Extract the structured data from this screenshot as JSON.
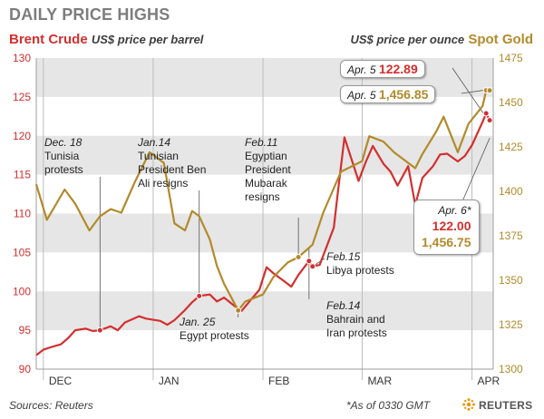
{
  "header": {
    "title": "DAILY PRICE HIGHS",
    "brent_label": "Brent Crude",
    "brent_unit": "US$ price per barrel",
    "gold_unit": "US$ price per ounce",
    "gold_label": "Spot Gold"
  },
  "footer": {
    "source": "Sources: Reuters",
    "asof": "*As of 0330 GMT",
    "brand": "REUTERS"
  },
  "colors": {
    "brent": "#d32f2f",
    "gold": "#b28a2a",
    "band": "#e6e6e6"
  },
  "annotations": {
    "dec18_date": "Dec. 18",
    "dec18_text": "Tunisia\nprotests",
    "jan14_date": "Jan.14",
    "jan14_text": "Tunisian\nPresident Ben\nAli resigns",
    "jan25_date": "Jan. 25",
    "jan25_text": "Egypt protests",
    "feb11_date": "Feb.11",
    "feb11_text": "Egyptian\nPresident\nMubarak\nresigns",
    "feb15_date": "Feb.15",
    "feb15_text": "Libya protests",
    "feb14_date": "Feb.14",
    "feb14_text": "Bahrain and\nIran protests",
    "apr5_brent_date": "Apr. 5",
    "apr5_brent_value": "122.89",
    "apr5_gold_date": "Apr. 5",
    "apr5_gold_value": "1,456.85",
    "apr6_date": "Apr. 6*",
    "apr6_brent": "122.00",
    "apr6_gold": "1,456.75"
  },
  "chart_data": {
    "type": "line",
    "title": "DAILY PRICE HIGHS",
    "x_months": [
      "DEC",
      "JAN",
      "FEB",
      "MAR",
      "APR"
    ],
    "left_axis": {
      "label": "US$ price per barrel",
      "ylim": [
        90,
        130
      ],
      "ticks": [
        90,
        95,
        100,
        105,
        110,
        115,
        120,
        125,
        130
      ]
    },
    "right_axis": {
      "label": "US$ price per ounce",
      "ylim": [
        1300,
        1475
      ],
      "ticks": [
        1300,
        1325,
        1350,
        1375,
        1400,
        1425,
        1450,
        1475
      ]
    },
    "grid_bands": true,
    "series": [
      {
        "name": "Brent Crude",
        "axis": "left",
        "x": [
          "2010-11-29",
          "2010-12-01",
          "2010-12-03",
          "2010-12-06",
          "2010-12-08",
          "2010-12-10",
          "2010-12-13",
          "2010-12-15",
          "2010-12-17",
          "2010-12-20",
          "2010-12-22",
          "2010-12-24",
          "2010-12-28",
          "2010-12-30",
          "2011-01-03",
          "2011-01-05",
          "2011-01-07",
          "2011-01-10",
          "2011-01-12",
          "2011-01-14",
          "2011-01-17",
          "2011-01-19",
          "2011-01-21",
          "2011-01-24",
          "2011-01-26",
          "2011-01-28",
          "2011-01-31",
          "2011-02-02",
          "2011-02-04",
          "2011-02-07",
          "2011-02-09",
          "2011-02-11",
          "2011-02-14",
          "2011-02-15",
          "2011-02-17",
          "2011-02-21",
          "2011-02-22",
          "2011-02-24",
          "2011-02-28",
          "2011-03-02",
          "2011-03-04",
          "2011-03-07",
          "2011-03-09",
          "2011-03-11",
          "2011-03-14",
          "2011-03-16",
          "2011-03-18",
          "2011-03-21",
          "2011-03-23",
          "2011-03-25",
          "2011-03-28",
          "2011-03-30",
          "2011-04-01",
          "2011-04-04",
          "2011-04-05",
          "2011-04-06"
        ],
        "y": [
          91.8,
          92.5,
          92.8,
          93.2,
          94.0,
          95.0,
          95.2,
          94.9,
          95.0,
          95.5,
          95.0,
          96.0,
          96.8,
          96.5,
          96.2,
          95.7,
          96.3,
          97.6,
          98.6,
          99.4,
          99.6,
          98.7,
          99.2,
          98.1,
          97.5,
          98.6,
          100.2,
          103.1,
          102.3,
          101.3,
          100.6,
          102.1,
          103.9,
          103.2,
          103.4,
          108.2,
          112.2,
          119.8,
          114.2,
          116.6,
          118.7,
          116.4,
          115.4,
          113.6,
          116.1,
          111.1,
          114.6,
          116.1,
          117.6,
          117.7,
          116.7,
          117.4,
          118.8,
          121.8,
          122.89,
          122.0
        ]
      },
      {
        "name": "Spot Gold",
        "axis": "right",
        "x": [
          "2010-11-29",
          "2010-12-02",
          "2010-12-07",
          "2010-12-10",
          "2010-12-14",
          "2010-12-17",
          "2010-12-20",
          "2010-12-23",
          "2010-12-27",
          "2010-12-31",
          "2011-01-04",
          "2011-01-07",
          "2011-01-10",
          "2011-01-12",
          "2011-01-14",
          "2011-01-17",
          "2011-01-19",
          "2011-01-21",
          "2011-01-25",
          "2011-01-27",
          "2011-02-01",
          "2011-02-04",
          "2011-02-08",
          "2011-02-11",
          "2011-02-15",
          "2011-02-18",
          "2011-02-23",
          "2011-02-25",
          "2011-03-01",
          "2011-03-03",
          "2011-03-07",
          "2011-03-10",
          "2011-03-14",
          "2011-03-16",
          "2011-03-18",
          "2011-03-22",
          "2011-03-24",
          "2011-03-28",
          "2011-03-31",
          "2011-04-04",
          "2011-04-05",
          "2011-04-06"
        ],
        "y": [
          1404,
          1384,
          1401,
          1393,
          1378,
          1386,
          1390,
          1388,
          1406,
          1422,
          1416,
          1382,
          1378,
          1389,
          1386,
          1373,
          1358,
          1348,
          1333,
          1338,
          1342,
          1352,
          1360,
          1363,
          1370,
          1388,
          1411,
          1413,
          1417,
          1431,
          1428,
          1422,
          1416,
          1413,
          1421,
          1434,
          1442,
          1422,
          1438,
          1448,
          1456.85,
          1456.75
        ]
      }
    ]
  }
}
